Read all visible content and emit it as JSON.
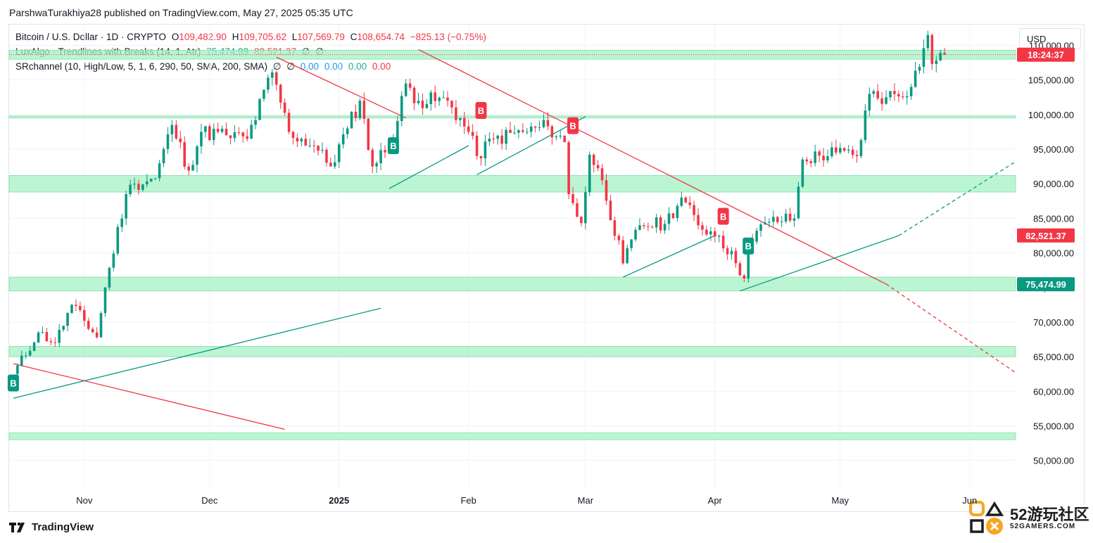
{
  "publisher_line": "ParshwaTurakhiya28 published on TradingView.com, May 27, 2025 05:35 UTC",
  "legend": {
    "line1": {
      "symbol": "Bitcoin / U.S. Dollar · 1D · CRYPTO",
      "o_label": "O",
      "o": "109,482.90",
      "h_label": "H",
      "h": "109,705.62",
      "l_label": "L",
      "l": "107,569.79",
      "c_label": "C",
      "c": "108,654.74",
      "change": "−825.13 (−0.75%)"
    },
    "line2": {
      "name": "LuxAlgo · Trendlines with Breaks (14, 1, Atr)",
      "v1": "75,474.99",
      "v2": "82,521.37",
      "v3": "∅",
      "v4": "∅"
    },
    "line3": {
      "name": "SRchannel (10, High/Low, 5, 1, 6, 290, 50, SMA, 200, SMA)",
      "v1": "∅",
      "v2": "∅",
      "v3": "0.00",
      "v4": "0.00",
      "v5": "0.00",
      "v6": "0.00"
    }
  },
  "currency_button": "USD",
  "branding": "TradingView",
  "watermark": {
    "big": "52游玩社区",
    "small": "52GAMERS.COM"
  },
  "colors": {
    "up": "#089981",
    "down": "#f23645",
    "zone": "#a6f2c6",
    "zone_line": "#7fe0a6",
    "trend_down": "#089981",
    "trend_up": "#f23645"
  },
  "chart_data": {
    "type": "candlestick",
    "ylim": [
      46000,
      113000
    ],
    "y_ticks": [
      50000,
      55000,
      60000,
      65000,
      70000,
      75000,
      80000,
      85000,
      90000,
      95000,
      100000,
      105000,
      110000
    ],
    "y_tick_labels": [
      "50,000.00",
      "55,000.00",
      "60,000.00",
      "65,000.00",
      "70,000.00",
      "75,000.00",
      "80,000.00",
      "85,000.00",
      "90,000.00",
      "95,000.00",
      "100,000.00",
      "105,000.00",
      "110,000.00"
    ],
    "x_range": [
      "2024-10-14",
      "2025-06-12"
    ],
    "x_ticks": [
      {
        "date": "2024-11-01",
        "label": "Nov"
      },
      {
        "date": "2024-12-01",
        "label": "Dec"
      },
      {
        "date": "2025-01-01",
        "label": "2025"
      },
      {
        "date": "2025-02-01",
        "label": "Feb"
      },
      {
        "date": "2025-03-01",
        "label": "Mar"
      },
      {
        "date": "2025-04-01",
        "label": "Apr"
      },
      {
        "date": "2025-05-01",
        "label": "May"
      },
      {
        "date": "2025-06-01",
        "label": "Jun"
      }
    ],
    "price_labels": [
      {
        "text": "18:24:37",
        "value": 108654.74,
        "color": "#f23645"
      },
      {
        "text": "82,521.37",
        "value": 82521.37,
        "color": "#f23645"
      },
      {
        "text": "75,474.99",
        "value": 75474.99,
        "color": "#089981"
      }
    ],
    "close_line": 108654.74,
    "sr_zones": [
      [
        53000,
        54000
      ],
      [
        65000,
        66500
      ],
      [
        74500,
        76500
      ],
      [
        88800,
        91200
      ],
      [
        99500,
        99800
      ],
      [
        108000,
        109300
      ]
    ],
    "trendlines": [
      {
        "color": "down",
        "x1": "2024-10-15",
        "y1": 64000,
        "x2": "2024-12-19",
        "y2": 54500,
        "dashed": false
      },
      {
        "color": "up",
        "x1": "2024-10-15",
        "y1": 59000,
        "x2": "2025-01-11",
        "y2": 72000,
        "dashed": false
      },
      {
        "color": "down",
        "x1": "2024-12-17",
        "y1": 108300,
        "x2": "2025-01-17",
        "y2": 99500,
        "dashed": false
      },
      {
        "color": "down",
        "x1": "2025-01-20",
        "y1": 109400,
        "x2": "2025-05-12",
        "y2": 75500,
        "dashed": false
      },
      {
        "color": "down",
        "x1": "2025-05-12",
        "y1": 75500,
        "x2": "2025-06-12",
        "y2": 62700,
        "dashed": true
      },
      {
        "color": "up",
        "x1": "2025-01-13",
        "y1": 89300,
        "x2": "2025-02-01",
        "y2": 95500,
        "dashed": false
      },
      {
        "color": "up",
        "x1": "2025-02-03",
        "y1": 91300,
        "x2": "2025-03-01",
        "y2": 99700,
        "dashed": false
      },
      {
        "color": "up",
        "x1": "2025-03-10",
        "y1": 76500,
        "x2": "2025-04-01",
        "y2": 82500,
        "dashed": false
      },
      {
        "color": "up",
        "x1": "2025-04-07",
        "y1": 74500,
        "x2": "2025-05-15",
        "y2": 82500,
        "dashed": false
      },
      {
        "color": "up",
        "x1": "2025-05-15",
        "y1": 82500,
        "x2": "2025-06-12",
        "y2": 93200,
        "dashed": true
      }
    ],
    "break_markers": [
      {
        "date": "2024-10-15",
        "price": 61200,
        "text": "B",
        "color": "up"
      },
      {
        "date": "2025-01-14",
        "price": 95500,
        "text": "B",
        "color": "up"
      },
      {
        "date": "2025-02-04",
        "price": 100600,
        "text": "B",
        "color": "down"
      },
      {
        "date": "2025-02-26",
        "price": 98400,
        "text": "B",
        "color": "down"
      },
      {
        "date": "2025-04-03",
        "price": 85300,
        "text": "B",
        "color": "down"
      },
      {
        "date": "2025-04-09",
        "price": 81000,
        "text": "B",
        "color": "up"
      }
    ],
    "anchors": [
      [
        "2024-10-15",
        62500
      ],
      [
        "2024-10-21",
        68500
      ],
      [
        "2024-10-25",
        67000
      ],
      [
        "2024-10-29",
        72500
      ],
      [
        "2024-11-04",
        67800
      ],
      [
        "2024-11-06",
        75000
      ],
      [
        "2024-11-11",
        88500
      ],
      [
        "2024-11-13",
        90000
      ],
      [
        "2024-11-18",
        90800
      ],
      [
        "2024-11-22",
        98500
      ],
      [
        "2024-11-26",
        91900
      ],
      [
        "2024-11-29",
        97500
      ],
      [
        "2024-12-05",
        97000
      ],
      [
        "2024-12-10",
        96500
      ],
      [
        "2024-12-16",
        106100
      ],
      [
        "2024-12-20",
        97500
      ],
      [
        "2024-12-26",
        95500
      ],
      [
        "2024-12-30",
        92500
      ],
      [
        "2025-01-03",
        98000
      ],
      [
        "2025-01-06",
        102000
      ],
      [
        "2025-01-09",
        92500
      ],
      [
        "2025-01-14",
        96500
      ],
      [
        "2025-01-17",
        104500
      ],
      [
        "2025-01-20",
        102000
      ],
      [
        "2025-01-27",
        102000
      ],
      [
        "2025-02-01",
        97500
      ],
      [
        "2025-02-03",
        94000
      ],
      [
        "2025-02-07",
        96500
      ],
      [
        "2025-02-14",
        97500
      ],
      [
        "2025-02-20",
        98300
      ],
      [
        "2025-02-24",
        96000
      ],
      [
        "2025-02-25",
        88500
      ],
      [
        "2025-02-28",
        84300
      ],
      [
        "2025-03-02",
        94200
      ],
      [
        "2025-03-05",
        90500
      ],
      [
        "2025-03-10",
        78500
      ],
      [
        "2025-03-14",
        84000
      ],
      [
        "2025-03-20",
        84200
      ],
      [
        "2025-03-24",
        88000
      ],
      [
        "2025-03-28",
        84000
      ],
      [
        "2025-04-02",
        82500
      ],
      [
        "2025-04-06",
        78500
      ],
      [
        "2025-04-08",
        76300
      ],
      [
        "2025-04-09",
        82000
      ],
      [
        "2025-04-14",
        84500
      ],
      [
        "2025-04-20",
        85000
      ],
      [
        "2025-04-22",
        93500
      ],
      [
        "2025-04-30",
        94500
      ],
      [
        "2025-05-05",
        94000
      ],
      [
        "2025-05-08",
        103000
      ],
      [
        "2025-05-12",
        102500
      ],
      [
        "2025-05-18",
        104000
      ],
      [
        "2025-05-21",
        109600
      ],
      [
        "2025-05-22",
        111500
      ],
      [
        "2025-05-23",
        107300
      ],
      [
        "2025-05-26",
        108654.74
      ]
    ]
  }
}
